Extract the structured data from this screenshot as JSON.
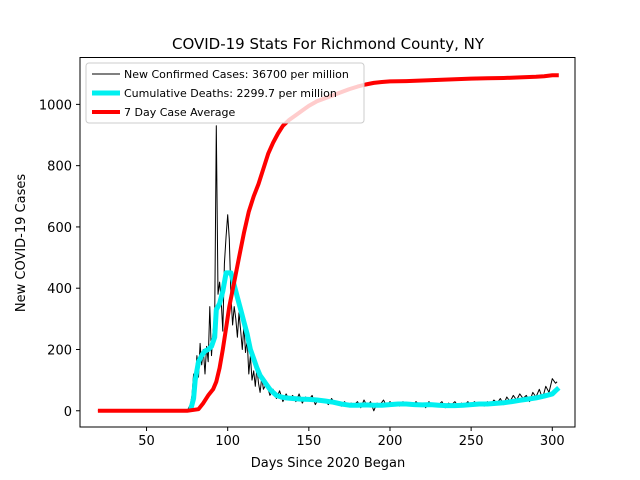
{
  "chart_data": {
    "type": "line",
    "title": "COVID-19 Stats For Richmond County, NY",
    "xlabel": "Days Since 2020 Began",
    "ylabel": "New COVID-19 Cases",
    "xlim": [
      9,
      314
    ],
    "ylim": [
      -53,
      1153
    ],
    "xticks": [
      50,
      100,
      150,
      200,
      250,
      300
    ],
    "yticks": [
      0,
      200,
      400,
      600,
      800,
      1000
    ],
    "grid": false,
    "legend_position": "upper-left",
    "series": [
      {
        "name": "New Confirmed Cases: 36700 per million",
        "color": "#000000",
        "width": 1,
        "points": [
          [
            20,
            0
          ],
          [
            30,
            0
          ],
          [
            40,
            0
          ],
          [
            50,
            0
          ],
          [
            60,
            0
          ],
          [
            70,
            0
          ],
          [
            75,
            0
          ],
          [
            77,
            20
          ],
          [
            78,
            50
          ],
          [
            79,
            120
          ],
          [
            80,
            90
          ],
          [
            81,
            180
          ],
          [
            82,
            110
          ],
          [
            83,
            220
          ],
          [
            84,
            150
          ],
          [
            85,
            200
          ],
          [
            86,
            120
          ],
          [
            87,
            210
          ],
          [
            88,
            160
          ],
          [
            89,
            340
          ],
          [
            90,
            180
          ],
          [
            91,
            260
          ],
          [
            92,
            300
          ],
          [
            93,
            930
          ],
          [
            94,
            380
          ],
          [
            95,
            420
          ],
          [
            96,
            360
          ],
          [
            97,
            260
          ],
          [
            98,
            480
          ],
          [
            99,
            570
          ],
          [
            100,
            640
          ],
          [
            101,
            560
          ],
          [
            102,
            380
          ],
          [
            103,
            280
          ],
          [
            104,
            340
          ],
          [
            105,
            300
          ],
          [
            106,
            240
          ],
          [
            107,
            320
          ],
          [
            108,
            260
          ],
          [
            109,
            200
          ],
          [
            110,
            280
          ],
          [
            111,
            190
          ],
          [
            112,
            230
          ],
          [
            113,
            120
          ],
          [
            114,
            180
          ],
          [
            115,
            100
          ],
          [
            116,
            130
          ],
          [
            117,
            80
          ],
          [
            118,
            140
          ],
          [
            119,
            90
          ],
          [
            120,
            60
          ],
          [
            121,
            110
          ],
          [
            122,
            70
          ],
          [
            124,
            90
          ],
          [
            126,
            50
          ],
          [
            128,
            70
          ],
          [
            130,
            40
          ],
          [
            132,
            65
          ],
          [
            134,
            30
          ],
          [
            136,
            55
          ],
          [
            138,
            35
          ],
          [
            140,
            50
          ],
          [
            142,
            30
          ],
          [
            144,
            55
          ],
          [
            146,
            25
          ],
          [
            148,
            45
          ],
          [
            150,
            35
          ],
          [
            152,
            50
          ],
          [
            154,
            20
          ],
          [
            156,
            40
          ],
          [
            158,
            30
          ],
          [
            160,
            35
          ],
          [
            162,
            20
          ],
          [
            164,
            40
          ],
          [
            166,
            25
          ],
          [
            168,
            30
          ],
          [
            170,
            15
          ],
          [
            172,
            30
          ],
          [
            174,
            15
          ],
          [
            176,
            25
          ],
          [
            178,
            20
          ],
          [
            180,
            30
          ],
          [
            182,
            10
          ],
          [
            184,
            35
          ],
          [
            186,
            15
          ],
          [
            188,
            30
          ],
          [
            190,
            0
          ],
          [
            192,
            25
          ],
          [
            194,
            20
          ],
          [
            196,
            35
          ],
          [
            198,
            15
          ],
          [
            200,
            30
          ],
          [
            202,
            20
          ],
          [
            204,
            25
          ],
          [
            206,
            15
          ],
          [
            208,
            30
          ],
          [
            210,
            20
          ],
          [
            212,
            25
          ],
          [
            214,
            15
          ],
          [
            216,
            30
          ],
          [
            218,
            20
          ],
          [
            220,
            25
          ],
          [
            222,
            10
          ],
          [
            224,
            30
          ],
          [
            226,
            15
          ],
          [
            228,
            25
          ],
          [
            230,
            20
          ],
          [
            232,
            30
          ],
          [
            234,
            10
          ],
          [
            236,
            25
          ],
          [
            238,
            20
          ],
          [
            240,
            30
          ],
          [
            242,
            15
          ],
          [
            244,
            25
          ],
          [
            246,
            20
          ],
          [
            248,
            30
          ],
          [
            250,
            15
          ],
          [
            252,
            30
          ],
          [
            254,
            20
          ],
          [
            256,
            25
          ],
          [
            258,
            15
          ],
          [
            260,
            30
          ],
          [
            262,
            20
          ],
          [
            264,
            35
          ],
          [
            266,
            25
          ],
          [
            268,
            40
          ],
          [
            270,
            20
          ],
          [
            272,
            45
          ],
          [
            274,
            30
          ],
          [
            276,
            50
          ],
          [
            278,
            35
          ],
          [
            280,
            55
          ],
          [
            282,
            40
          ],
          [
            284,
            50
          ],
          [
            286,
            30
          ],
          [
            288,
            60
          ],
          [
            290,
            45
          ],
          [
            292,
            70
          ],
          [
            294,
            40
          ],
          [
            296,
            80
          ],
          [
            298,
            60
          ],
          [
            300,
            105
          ],
          [
            302,
            90
          ],
          [
            303,
            95
          ]
        ]
      },
      {
        "name": "Cumulative Deaths: 2299.7 per million",
        "color": "#00f0f0",
        "width": 5,
        "points": [
          [
            77,
            0
          ],
          [
            79,
            40
          ],
          [
            80,
            100
          ],
          [
            82,
            160
          ],
          [
            84,
            180
          ],
          [
            86,
            195
          ],
          [
            88,
            200
          ],
          [
            90,
            210
          ],
          [
            92,
            240
          ],
          [
            93,
            330
          ],
          [
            95,
            350
          ],
          [
            97,
            390
          ],
          [
            99,
            450
          ],
          [
            102,
            450
          ],
          [
            104,
            410
          ],
          [
            106,
            370
          ],
          [
            108,
            330
          ],
          [
            110,
            290
          ],
          [
            112,
            250
          ],
          [
            114,
            200
          ],
          [
            116,
            170
          ],
          [
            118,
            140
          ],
          [
            120,
            115
          ],
          [
            122,
            100
          ],
          [
            124,
            85
          ],
          [
            126,
            70
          ],
          [
            128,
            60
          ],
          [
            130,
            50
          ],
          [
            133,
            45
          ],
          [
            136,
            42
          ],
          [
            140,
            40
          ],
          [
            145,
            38
          ],
          [
            150,
            37
          ],
          [
            155,
            35
          ],
          [
            160,
            32
          ],
          [
            165,
            28
          ],
          [
            170,
            22
          ],
          [
            175,
            18
          ],
          [
            180,
            18
          ],
          [
            185,
            19
          ],
          [
            190,
            18
          ],
          [
            195,
            18
          ],
          [
            200,
            20
          ],
          [
            205,
            22
          ],
          [
            210,
            22
          ],
          [
            215,
            20
          ],
          [
            220,
            19
          ],
          [
            225,
            20
          ],
          [
            230,
            18
          ],
          [
            235,
            17
          ],
          [
            240,
            17
          ],
          [
            245,
            18
          ],
          [
            250,
            20
          ],
          [
            255,
            22
          ],
          [
            260,
            22
          ],
          [
            265,
            24
          ],
          [
            270,
            26
          ],
          [
            275,
            30
          ],
          [
            280,
            34
          ],
          [
            285,
            38
          ],
          [
            290,
            42
          ],
          [
            295,
            48
          ],
          [
            300,
            55
          ],
          [
            302,
            65
          ],
          [
            304,
            75
          ]
        ]
      },
      {
        "name": "7 Day Case Average",
        "color": "#ff0000",
        "width": 4,
        "points": [
          [
            20,
            0
          ],
          [
            50,
            0
          ],
          [
            75,
            0
          ],
          [
            82,
            5
          ],
          [
            85,
            25
          ],
          [
            88,
            50
          ],
          [
            91,
            70
          ],
          [
            93,
            95
          ],
          [
            95,
            140
          ],
          [
            97,
            200
          ],
          [
            99,
            270
          ],
          [
            101,
            340
          ],
          [
            104,
            420
          ],
          [
            107,
            500
          ],
          [
            110,
            580
          ],
          [
            113,
            650
          ],
          [
            116,
            700
          ],
          [
            119,
            740
          ],
          [
            122,
            790
          ],
          [
            125,
            840
          ],
          [
            128,
            875
          ],
          [
            131,
            905
          ],
          [
            134,
            930
          ],
          [
            138,
            950
          ],
          [
            142,
            965
          ],
          [
            146,
            980
          ],
          [
            150,
            995
          ],
          [
            155,
            1010
          ],
          [
            160,
            1020
          ],
          [
            165,
            1030
          ],
          [
            170,
            1040
          ],
          [
            175,
            1050
          ],
          [
            180,
            1058
          ],
          [
            185,
            1065
          ],
          [
            190,
            1070
          ],
          [
            195,
            1073
          ],
          [
            200,
            1075
          ],
          [
            210,
            1076
          ],
          [
            220,
            1078
          ],
          [
            230,
            1080
          ],
          [
            240,
            1082
          ],
          [
            250,
            1084
          ],
          [
            260,
            1085
          ],
          [
            270,
            1086
          ],
          [
            280,
            1088
          ],
          [
            290,
            1090
          ],
          [
            295,
            1092
          ],
          [
            300,
            1095
          ],
          [
            304,
            1095
          ]
        ]
      }
    ]
  }
}
